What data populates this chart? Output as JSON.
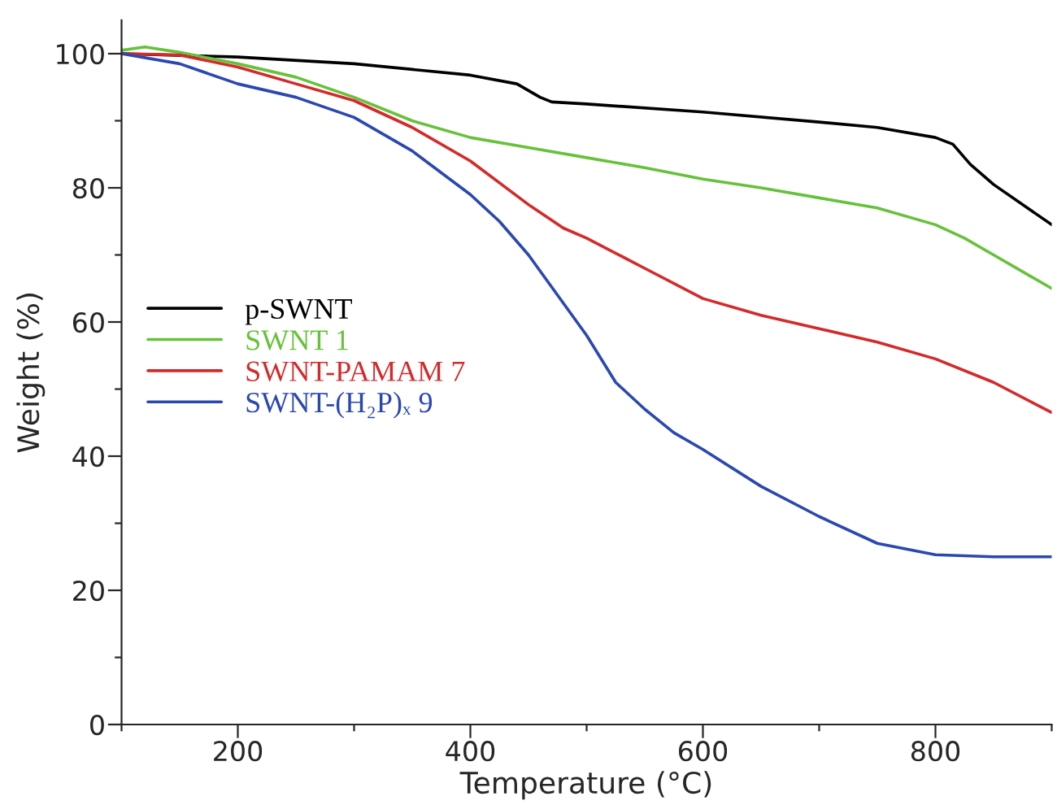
{
  "chart_data": {
    "type": "line",
    "xlabel": "Temperature (°C)",
    "ylabel": "Weight (%)",
    "xlim": [
      100,
      900
    ],
    "ylim": [
      0,
      105
    ],
    "xticks": [
      {
        "value": 100,
        "label": null
      },
      200,
      {
        "value": 300,
        "label": null
      },
      400,
      {
        "value": 500,
        "label": null
      },
      600,
      {
        "value": 700,
        "label": null
      },
      800,
      {
        "value": 900,
        "label": null
      }
    ],
    "yticks": [
      0,
      {
        "value": 10,
        "label": null
      },
      20,
      {
        "value": 30,
        "label": null
      },
      40,
      {
        "value": 50,
        "label": null
      },
      60,
      {
        "value": 70,
        "label": null
      },
      80,
      {
        "value": 90,
        "label": null
      },
      100
    ],
    "grid": false,
    "legend": "left",
    "marker": "none",
    "line_style": "solid",
    "series": [
      {
        "name": "p-SWNT",
        "color": "#000000",
        "x": [
          100,
          200,
          300,
          400,
          440,
          460,
          470,
          500,
          600,
          700,
          750,
          800,
          815,
          830,
          850,
          900
        ],
        "values": [
          100,
          99.5,
          98.5,
          96.8,
          95.5,
          93.5,
          92.8,
          92.5,
          91.3,
          89.8,
          89,
          87.5,
          86.5,
          83.5,
          80.5,
          74.5
        ]
      },
      {
        "name": "SWNT 1",
        "color": "#66c23a",
        "x": [
          100,
          120,
          150,
          200,
          250,
          300,
          350,
          400,
          450,
          500,
          550,
          600,
          650,
          700,
          750,
          800,
          825,
          850,
          875,
          900
        ],
        "values": [
          100.5,
          101,
          100.2,
          98.5,
          96.5,
          93.5,
          90,
          87.5,
          86,
          84.5,
          83,
          81.3,
          80,
          78.5,
          77,
          74.5,
          72.5,
          70,
          67.5,
          65
        ]
      },
      {
        "name": "SWNT-PAMAM 7",
        "color": "#d42a2a",
        "x": [
          100,
          150,
          200,
          250,
          300,
          350,
          400,
          450,
          480,
          500,
          550,
          600,
          650,
          700,
          750,
          800,
          850,
          900
        ],
        "values": [
          100,
          99.8,
          98,
          95.5,
          93,
          89,
          84,
          77.5,
          74,
          72.5,
          68,
          63.5,
          61,
          59,
          57,
          54.5,
          51,
          46.5
        ]
      },
      {
        "name": "SWNT-(H₂P)ₓ 9",
        "color": "#2a48b0",
        "x": [
          100,
          150,
          200,
          250,
          300,
          350,
          400,
          425,
          450,
          475,
          500,
          525,
          550,
          575,
          600,
          650,
          700,
          750,
          800,
          850,
          900
        ],
        "values": [
          100,
          98.5,
          95.5,
          93.5,
          90.5,
          85.5,
          79,
          75,
          70,
          64,
          58,
          51,
          47,
          43.5,
          41,
          35.5,
          31,
          27,
          25.3,
          25,
          25
        ]
      }
    ]
  }
}
